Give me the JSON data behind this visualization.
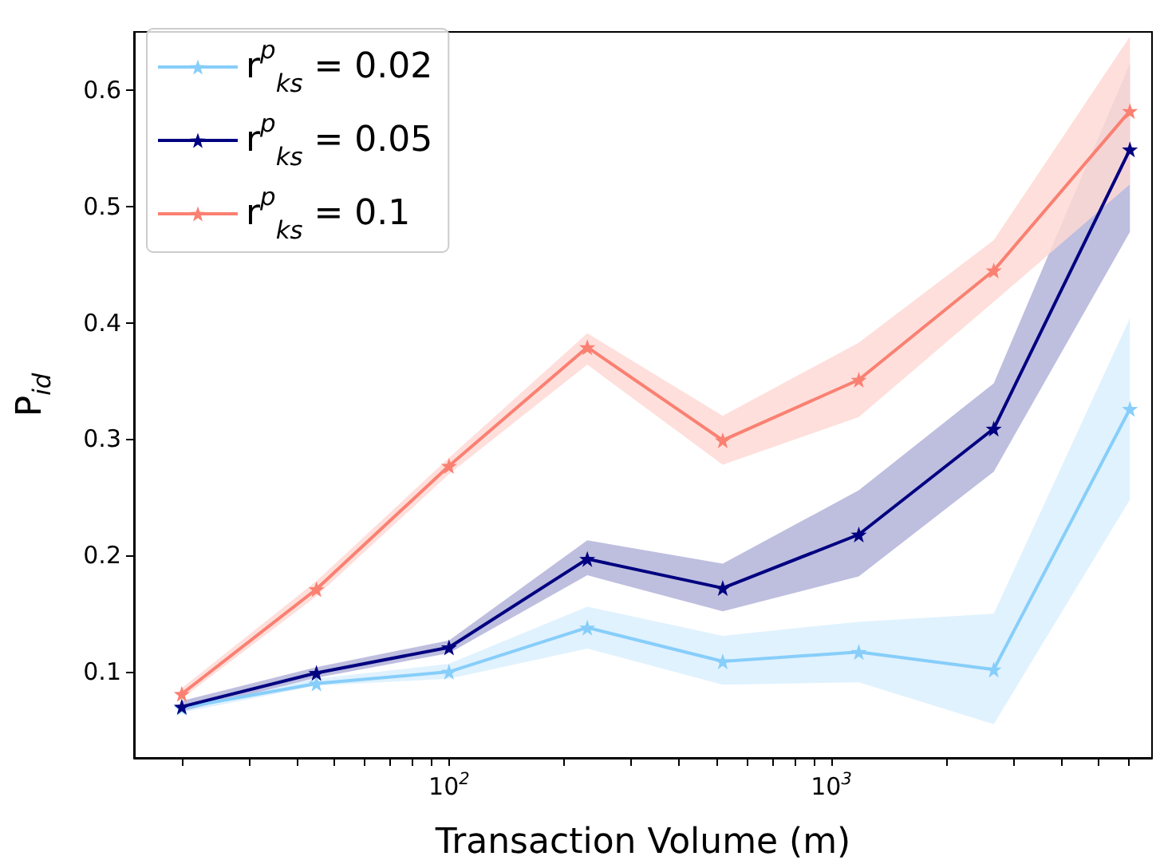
{
  "chart_data": {
    "type": "line",
    "xlabel": "Transaction Volume (m)",
    "ylabel": "P$_{id}$",
    "log": "x",
    "marker": "star",
    "line_style": "solid",
    "grid": false,
    "legend": "top left",
    "x": [
      20,
      45,
      100,
      230,
      520,
      1180,
      2660,
      6040
    ],
    "xlim": [
      15,
      6900
    ],
    "ylim": [
      0.026,
      0.65
    ],
    "xticks": [
      {
        "value": 20,
        "label": null
      },
      {
        "value": 30,
        "label": null
      },
      {
        "value": 40,
        "label": null
      },
      {
        "value": 50,
        "label": null
      },
      {
        "value": 60,
        "label": null
      },
      {
        "value": 70,
        "label": null
      },
      {
        "value": 80,
        "label": null
      },
      {
        "value": 90,
        "label": null
      },
      {
        "value": 100,
        "label": "10$^{2}$"
      },
      {
        "value": 200,
        "label": null
      },
      {
        "value": 300,
        "label": null
      },
      {
        "value": 400,
        "label": null
      },
      {
        "value": 500,
        "label": null
      },
      {
        "value": 600,
        "label": null
      },
      {
        "value": 700,
        "label": null
      },
      {
        "value": 800,
        "label": null
      },
      {
        "value": 900,
        "label": null
      },
      {
        "value": 1000,
        "label": "10$^{3}$"
      },
      {
        "value": 2000,
        "label": null
      },
      {
        "value": 3000,
        "label": null
      },
      {
        "value": 4000,
        "label": null
      },
      {
        "value": 5000,
        "label": null
      },
      {
        "value": 6000,
        "label": null
      }
    ],
    "yticks": [
      0.1,
      0.2,
      0.3,
      0.4,
      0.5,
      0.6
    ],
    "series": [
      {
        "name": "r$^{p}$$_{ks}$ = 0.02",
        "color": "#87cefa",
        "values": [
          0.069,
          0.09,
          0.1,
          0.138,
          0.109,
          0.117,
          0.102,
          0.326
        ],
        "lower": [
          0.065,
          0.088,
          0.094,
          0.12,
          0.089,
          0.091,
          0.055,
          0.248
        ],
        "upper": [
          0.072,
          0.094,
          0.107,
          0.156,
          0.131,
          0.143,
          0.15,
          0.404
        ]
      },
      {
        "name": "r$^{p}$$_{ks}$ = 0.05",
        "color": "#000080",
        "values": [
          0.07,
          0.099,
          0.121,
          0.197,
          0.172,
          0.218,
          0.309,
          0.549
        ],
        "lower": [
          0.066,
          0.095,
          0.116,
          0.183,
          0.152,
          0.182,
          0.272,
          0.478
        ],
        "upper": [
          0.075,
          0.104,
          0.127,
          0.213,
          0.193,
          0.256,
          0.348,
          0.623
        ]
      },
      {
        "name": "r$^{p}$$_{ks}$ = 0.1",
        "color": "#fa8072",
        "values": [
          0.081,
          0.171,
          0.277,
          0.379,
          0.299,
          0.351,
          0.445,
          0.582
        ],
        "lower": [
          0.077,
          0.165,
          0.27,
          0.364,
          0.278,
          0.319,
          0.418,
          0.519
        ],
        "upper": [
          0.086,
          0.178,
          0.284,
          0.391,
          0.32,
          0.383,
          0.471,
          0.646
        ]
      }
    ]
  }
}
